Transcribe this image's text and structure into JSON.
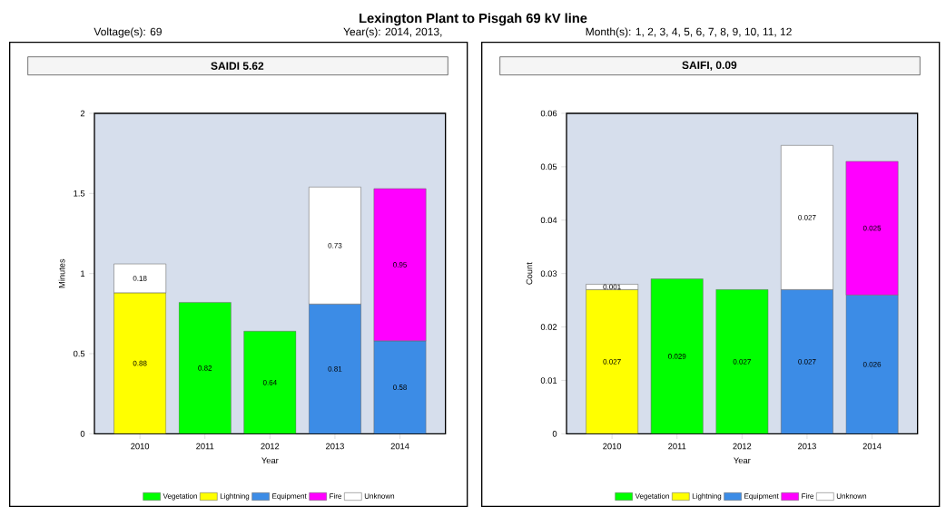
{
  "chart_data": [
    {
      "type": "bar",
      "title": "SAIDI 5.62",
      "xlabel": "Year",
      "ylabel": "Minutes",
      "annotations": [
        "Lexington Plant to Pisgah 69 kV line",
        "Voltage(s): 69",
        "Year(s): 2014, 2013,",
        "Month(s): 1, 2, 3, 4, 5, 6, 7, 8, 9, 10, 11, 12"
      ],
      "categories": [
        "2010",
        "2011",
        "2012",
        "2013",
        "2014"
      ],
      "stacked": true,
      "data_labels": true,
      "legend": "bottom",
      "ylim": [
        0,
        2
      ],
      "yticks": [
        0,
        0.5,
        1,
        1.5,
        2
      ],
      "series": [
        {
          "name": "Vegetation",
          "color": "#00ff00",
          "values": [
            null,
            0.82,
            0.64,
            null,
            null
          ]
        },
        {
          "name": "Lightning",
          "color": "#ffff00",
          "values": [
            0.88,
            null,
            null,
            null,
            null
          ]
        },
        {
          "name": "Equipment",
          "color": "#3c8ce6",
          "values": [
            null,
            null,
            null,
            0.81,
            0.58
          ]
        },
        {
          "name": "Fire",
          "color": "#ff00ff",
          "values": [
            null,
            null,
            null,
            null,
            0.95
          ]
        },
        {
          "name": "Unknown",
          "color": "#ffffff",
          "values": [
            0.18,
            null,
            null,
            0.73,
            null
          ]
        }
      ]
    },
    {
      "type": "bar",
      "title": "SAIFI, 0.09",
      "xlabel": "Year",
      "ylabel": "Count",
      "categories": [
        "2010",
        "2011",
        "2012",
        "2013",
        "2014"
      ],
      "stacked": true,
      "data_labels": true,
      "legend": "bottom",
      "ylim": [
        0,
        0.06
      ],
      "yticks": [
        0,
        0.01,
        0.02,
        0.03,
        0.04,
        0.05,
        0.06
      ],
      "series": [
        {
          "name": "Vegetation",
          "color": "#00ff00",
          "values": [
            null,
            0.029,
            0.027,
            null,
            null
          ]
        },
        {
          "name": "Lightning",
          "color": "#ffff00",
          "values": [
            0.027,
            null,
            null,
            null,
            null
          ]
        },
        {
          "name": "Equipment",
          "color": "#3c8ce6",
          "values": [
            null,
            null,
            null,
            0.027,
            0.026
          ]
        },
        {
          "name": "Fire",
          "color": "#ff00ff",
          "values": [
            null,
            null,
            null,
            null,
            0.025
          ]
        },
        {
          "name": "Unknown",
          "color": "#ffffff",
          "values": [
            0.001,
            null,
            null,
            0.027,
            null
          ]
        }
      ]
    }
  ]
}
